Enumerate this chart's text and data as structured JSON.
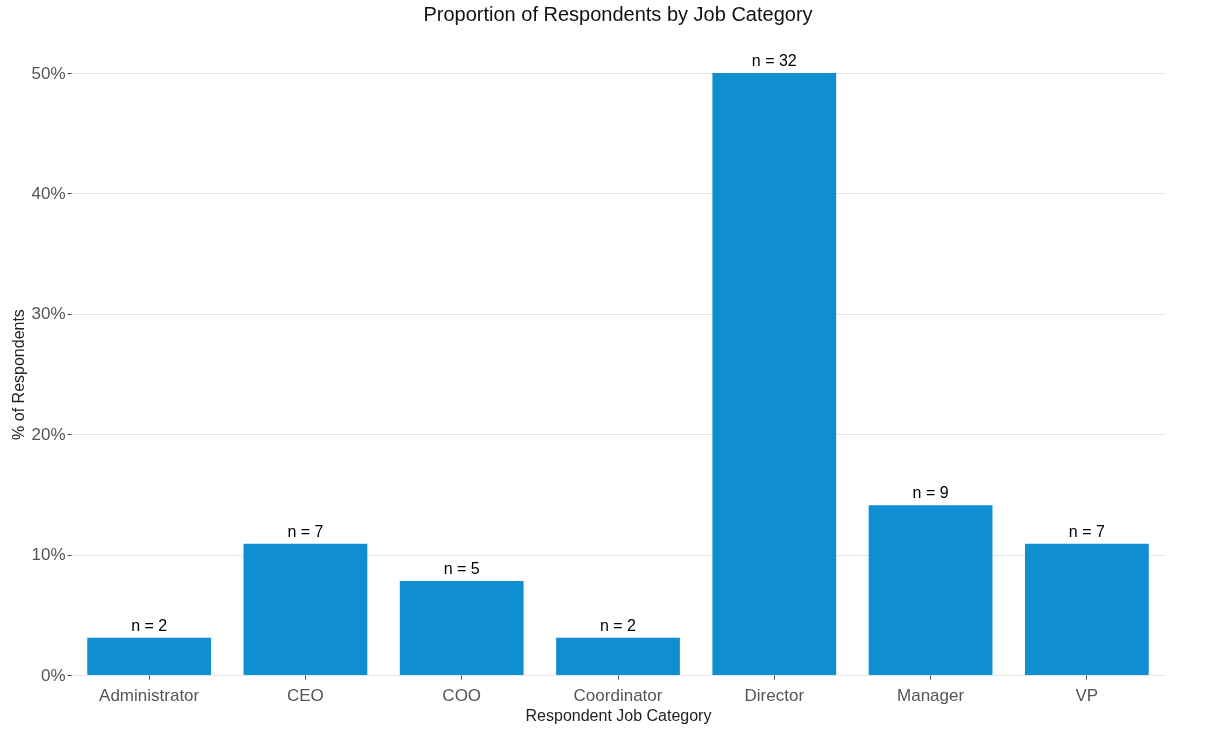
{
  "chart_data": {
    "type": "bar",
    "title": "Proportion of Respondents by Job Category",
    "xlabel": "Respondent Job Category",
    "ylabel": "% of Respondents",
    "categories": [
      "Administrator",
      "CEO",
      "COO",
      "Coordinator",
      "Director",
      "Manager",
      "VP"
    ],
    "values": [
      3.1,
      10.9,
      7.8,
      3.1,
      50,
      14.1,
      10.9
    ],
    "annotations": [
      {
        "text": "n = 2",
        "x": "Administrator",
        "y": 3.1
      },
      {
        "text": "n = 7",
        "x": "CEO",
        "y": 10.9
      },
      {
        "text": "n = 5",
        "x": "COO",
        "y": 7.8
      },
      {
        "text": "n = 2",
        "x": "Coordinator",
        "y": 3.1
      },
      {
        "text": "n = 32",
        "x": "Director",
        "y": 50
      },
      {
        "text": "n = 9",
        "x": "Manager",
        "y": 14.1
      },
      {
        "text": "n = 7",
        "x": "VP",
        "y": 10.9
      }
    ],
    "color": "#0f8fd2",
    "ylim": [
      0,
      50
    ],
    "yticks": [
      {
        "value": 0,
        "label": "0%"
      },
      {
        "value": 10,
        "label": "10%"
      },
      {
        "value": 20,
        "label": "20%"
      },
      {
        "value": 30,
        "label": "30%"
      },
      {
        "value": 40,
        "label": "40%"
      },
      {
        "value": 50,
        "label": "50%"
      }
    ],
    "grid": "y"
  }
}
